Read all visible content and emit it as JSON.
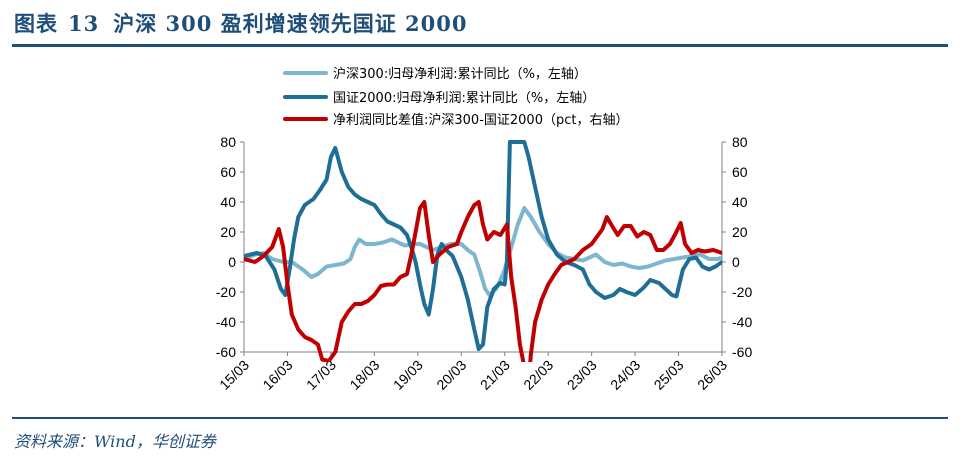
{
  "header": {
    "label": "图表",
    "number": "13",
    "title": "沪深 300 盈利增速领先国证 2000"
  },
  "footer": {
    "source": "资料来源：Wind，华创证券"
  },
  "colors": {
    "hs300": "#7eb6d0",
    "gz2000": "#1f6e96",
    "diff": "#c00000",
    "brand": "#1f4e79"
  },
  "chart_data": {
    "type": "line",
    "x_tick_labels": [
      "15/03",
      "16/03",
      "17/03",
      "18/03",
      "19/03",
      "20/03",
      "21/03",
      "22/03",
      "23/03",
      "24/03",
      "25/03",
      "26/03"
    ],
    "y_left": {
      "range": [
        -60,
        80
      ],
      "ticks": [
        "80",
        "60",
        "40",
        "20",
        "0",
        "-20",
        "-40",
        "-60"
      ]
    },
    "y_right": {
      "range": [
        -60,
        80
      ],
      "ticks": [
        "80",
        "60",
        "40",
        "20",
        "0",
        "-20",
        "-40",
        "-60"
      ]
    },
    "legend_position": "top",
    "series": [
      {
        "name": "沪深300:归母净利润:累计同比（%，左轴）",
        "axis": "left",
        "color": "#7eb6d0",
        "points": [
          [
            0,
            2
          ],
          [
            0.25,
            5
          ],
          [
            0.45,
            6
          ],
          [
            0.65,
            2
          ],
          [
            0.9,
            0
          ],
          [
            1.1,
            0
          ],
          [
            1.35,
            -5
          ],
          [
            1.55,
            -10
          ],
          [
            1.7,
            -8
          ],
          [
            1.9,
            -3
          ],
          [
            2.1,
            -2
          ],
          [
            2.3,
            -1
          ],
          [
            2.45,
            2
          ],
          [
            2.55,
            10
          ],
          [
            2.65,
            15
          ],
          [
            2.8,
            12
          ],
          [
            3.0,
            12
          ],
          [
            3.2,
            13
          ],
          [
            3.4,
            15
          ],
          [
            3.55,
            13
          ],
          [
            3.7,
            11
          ],
          [
            3.9,
            12
          ],
          [
            4.05,
            12
          ],
          [
            4.2,
            10
          ],
          [
            4.35,
            8
          ],
          [
            4.55,
            10
          ],
          [
            4.75,
            12
          ],
          [
            5.0,
            12
          ],
          [
            5.15,
            8
          ],
          [
            5.3,
            5
          ],
          [
            5.45,
            -8
          ],
          [
            5.55,
            -18
          ],
          [
            5.65,
            -22
          ],
          [
            5.8,
            -18
          ],
          [
            5.9,
            -12
          ],
          [
            6.0,
            -5
          ],
          [
            6.1,
            5
          ],
          [
            6.3,
            25
          ],
          [
            6.45,
            36
          ],
          [
            6.6,
            30
          ],
          [
            6.8,
            20
          ],
          [
            7.0,
            12
          ],
          [
            7.2,
            6
          ],
          [
            7.4,
            3
          ],
          [
            7.6,
            2
          ],
          [
            7.8,
            1
          ],
          [
            7.95,
            3
          ],
          [
            8.1,
            5
          ],
          [
            8.3,
            0
          ],
          [
            8.5,
            -2
          ],
          [
            8.7,
            -1
          ],
          [
            8.9,
            -3
          ],
          [
            9.1,
            -4
          ],
          [
            9.3,
            -3
          ],
          [
            9.5,
            -1
          ],
          [
            9.7,
            1
          ],
          [
            9.9,
            2
          ],
          [
            10.1,
            3
          ],
          [
            10.3,
            4
          ],
          [
            10.5,
            5
          ],
          [
            10.7,
            2
          ],
          [
            10.9,
            2
          ],
          [
            11.0,
            3
          ]
        ]
      },
      {
        "name": "国证2000:归母净利润:累计同比（%，左轴）",
        "axis": "left",
        "color": "#1f6e96",
        "points": [
          [
            0,
            4
          ],
          [
            0.3,
            6
          ],
          [
            0.5,
            4
          ],
          [
            0.7,
            -5
          ],
          [
            0.85,
            -18
          ],
          [
            0.95,
            -22
          ],
          [
            1.05,
            -5
          ],
          [
            1.15,
            15
          ],
          [
            1.25,
            30
          ],
          [
            1.4,
            38
          ],
          [
            1.6,
            42
          ],
          [
            1.75,
            48
          ],
          [
            1.9,
            55
          ],
          [
            2.0,
            70
          ],
          [
            2.1,
            76
          ],
          [
            2.25,
            60
          ],
          [
            2.4,
            50
          ],
          [
            2.55,
            45
          ],
          [
            2.7,
            42
          ],
          [
            2.85,
            40
          ],
          [
            3.0,
            38
          ],
          [
            3.15,
            32
          ],
          [
            3.3,
            27
          ],
          [
            3.45,
            25
          ],
          [
            3.6,
            23
          ],
          [
            3.75,
            18
          ],
          [
            3.85,
            10
          ],
          [
            3.95,
            0
          ],
          [
            4.05,
            -15
          ],
          [
            4.15,
            -28
          ],
          [
            4.25,
            -35
          ],
          [
            4.35,
            -18
          ],
          [
            4.45,
            5
          ],
          [
            4.55,
            12
          ],
          [
            4.65,
            8
          ],
          [
            4.8,
            4
          ],
          [
            5.0,
            -10
          ],
          [
            5.15,
            -25
          ],
          [
            5.3,
            -45
          ],
          [
            5.4,
            -58
          ],
          [
            5.5,
            -55
          ],
          [
            5.6,
            -30
          ],
          [
            5.75,
            -18
          ],
          [
            5.9,
            -14
          ],
          [
            6.0,
            -15
          ],
          [
            6.05,
            0
          ],
          [
            6.12,
            80
          ],
          [
            6.2,
            80
          ],
          [
            6.3,
            80
          ],
          [
            6.38,
            80
          ],
          [
            6.45,
            80
          ],
          [
            6.55,
            70
          ],
          [
            6.7,
            50
          ],
          [
            6.85,
            30
          ],
          [
            7.0,
            15
          ],
          [
            7.2,
            5
          ],
          [
            7.4,
            0
          ],
          [
            7.6,
            -2
          ],
          [
            7.8,
            -5
          ],
          [
            7.95,
            -15
          ],
          [
            8.1,
            -20
          ],
          [
            8.3,
            -24
          ],
          [
            8.5,
            -22
          ],
          [
            8.65,
            -18
          ],
          [
            8.8,
            -20
          ],
          [
            9.0,
            -22
          ],
          [
            9.2,
            -17
          ],
          [
            9.35,
            -12
          ],
          [
            9.55,
            -14
          ],
          [
            9.7,
            -18
          ],
          [
            9.85,
            -22
          ],
          [
            9.95,
            -23
          ],
          [
            10.1,
            -5
          ],
          [
            10.25,
            2
          ],
          [
            10.4,
            3
          ],
          [
            10.55,
            -3
          ],
          [
            10.7,
            -5
          ],
          [
            10.85,
            -3
          ],
          [
            11.0,
            0
          ]
        ]
      },
      {
        "name": "净利润同比差值:沪深300-国证2000（pct，右轴）",
        "axis": "right",
        "color": "#c00000",
        "points": [
          [
            0,
            2
          ],
          [
            0.25,
            0
          ],
          [
            0.45,
            4
          ],
          [
            0.65,
            10
          ],
          [
            0.8,
            22
          ],
          [
            0.9,
            10
          ],
          [
            1.0,
            -15
          ],
          [
            1.1,
            -35
          ],
          [
            1.25,
            -45
          ],
          [
            1.4,
            -50
          ],
          [
            1.55,
            -52
          ],
          [
            1.7,
            -55
          ],
          [
            1.8,
            -65
          ],
          [
            1.95,
            -66
          ],
          [
            2.1,
            -60
          ],
          [
            2.25,
            -40
          ],
          [
            2.4,
            -33
          ],
          [
            2.55,
            -28
          ],
          [
            2.7,
            -28
          ],
          [
            2.85,
            -26
          ],
          [
            3.0,
            -22
          ],
          [
            3.15,
            -16
          ],
          [
            3.3,
            -15
          ],
          [
            3.45,
            -15
          ],
          [
            3.6,
            -10
          ],
          [
            3.75,
            -8
          ],
          [
            3.85,
            5
          ],
          [
            3.95,
            20
          ],
          [
            4.05,
            36
          ],
          [
            4.15,
            40
          ],
          [
            4.25,
            18
          ],
          [
            4.35,
            0
          ],
          [
            4.5,
            5
          ],
          [
            4.7,
            10
          ],
          [
            4.9,
            12
          ],
          [
            5.0,
            20
          ],
          [
            5.15,
            30
          ],
          [
            5.3,
            38
          ],
          [
            5.4,
            40
          ],
          [
            5.5,
            25
          ],
          [
            5.6,
            15
          ],
          [
            5.75,
            20
          ],
          [
            5.9,
            18
          ],
          [
            6.05,
            25
          ],
          [
            6.15,
            -10
          ],
          [
            6.25,
            -30
          ],
          [
            6.35,
            -55
          ],
          [
            6.45,
            -70
          ],
          [
            6.55,
            -80
          ],
          [
            6.6,
            -62
          ],
          [
            6.7,
            -40
          ],
          [
            6.85,
            -25
          ],
          [
            7.0,
            -15
          ],
          [
            7.15,
            -8
          ],
          [
            7.3,
            -2
          ],
          [
            7.45,
            0
          ],
          [
            7.6,
            2
          ],
          [
            7.8,
            8
          ],
          [
            8.0,
            12
          ],
          [
            8.15,
            18
          ],
          [
            8.25,
            22
          ],
          [
            8.35,
            30
          ],
          [
            8.45,
            25
          ],
          [
            8.6,
            18
          ],
          [
            8.75,
            24
          ],
          [
            8.9,
            24
          ],
          [
            9.05,
            17
          ],
          [
            9.2,
            20
          ],
          [
            9.35,
            18
          ],
          [
            9.5,
            8
          ],
          [
            9.65,
            8
          ],
          [
            9.8,
            12
          ],
          [
            9.95,
            20
          ],
          [
            10.05,
            26
          ],
          [
            10.15,
            12
          ],
          [
            10.3,
            6
          ],
          [
            10.45,
            8
          ],
          [
            10.6,
            7
          ],
          [
            10.8,
            8
          ],
          [
            11.0,
            6
          ]
        ]
      }
    ]
  }
}
